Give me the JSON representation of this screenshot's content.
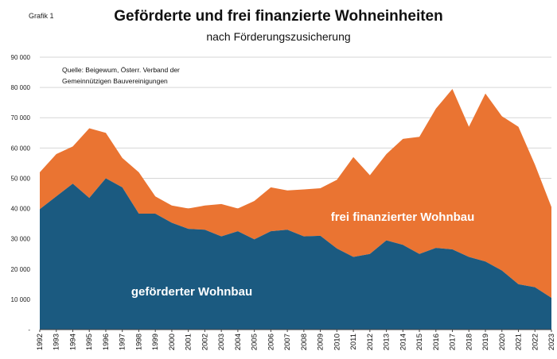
{
  "figure_label": "Grafik 1",
  "chart_data": {
    "type": "area",
    "stacked": true,
    "title": "Geförderte und frei finanzierte Wohneinheiten",
    "subtitle": "nach Förderungszusicherung",
    "source_lines": [
      "Quelle: Beigewum, Österr. Verband der",
      "Gemeinnützigen Bauvereinigungen"
    ],
    "xlabel": "",
    "ylabel": "",
    "ylim": [
      0,
      90000
    ],
    "y_ticks": [
      0,
      10000,
      20000,
      30000,
      40000,
      50000,
      60000,
      70000,
      80000,
      90000
    ],
    "y_tick_labels": [
      "-",
      "10 000",
      "20 000",
      "30 000",
      "40 000",
      "50 000",
      "60 000",
      "70 000",
      "80 000",
      "90 000"
    ],
    "grid": true,
    "x": [
      "1992",
      "1993",
      "1994",
      "1995",
      "1996",
      "1997",
      "1998",
      "1999",
      "2000",
      "2001",
      "2002",
      "2003",
      "2004",
      "2005",
      "2006",
      "2007",
      "2008",
      "2009",
      "2010",
      "2011",
      "2012",
      "2013",
      "2014",
      "2015",
      "2016",
      "2017",
      "2018",
      "2019",
      "2020",
      "2021",
      "2022",
      "2023"
    ],
    "series": [
      {
        "name": "geförderter Wohnbau",
        "color": "#1b5a80",
        "values": [
          39800,
          44000,
          48200,
          43500,
          50000,
          47000,
          38300,
          38300,
          35300,
          33300,
          33000,
          30800,
          32500,
          29800,
          32500,
          33000,
          30800,
          31000,
          26800,
          24000,
          25000,
          29500,
          28000,
          25000,
          27000,
          26500,
          24000,
          22500,
          19500,
          15000,
          14000,
          10500
        ]
      },
      {
        "name": "frei finanzierter Wohnbau",
        "color": "#ea7432",
        "values": [
          12200,
          14000,
          12300,
          23000,
          15000,
          9700,
          13700,
          5700,
          5700,
          6700,
          8000,
          10700,
          7500,
          12700,
          14500,
          13000,
          15500,
          15700,
          22700,
          33000,
          26000,
          28500,
          35000,
          38700,
          46000,
          53000,
          43000,
          55500,
          51000,
          52000,
          40500,
          30000
        ]
      }
    ]
  }
}
